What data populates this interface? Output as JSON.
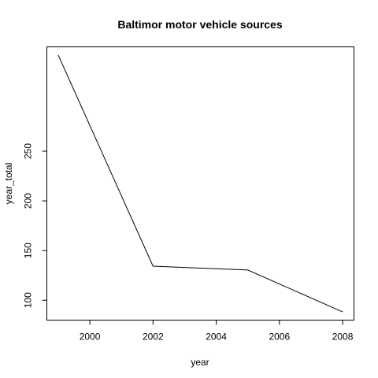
{
  "chart_data": {
    "type": "line",
    "title": "Baltimor motor vehicle sources",
    "xlabel": "year",
    "ylabel": "year_total",
    "x": [
      1999,
      2002,
      2005,
      2008
    ],
    "series": [
      {
        "values": [
          346.82,
          134.31,
          130.43,
          88.28
        ]
      }
    ],
    "xlim": [
      1998.64,
      2008.36
    ],
    "ylim": [
      80.0,
      355.0
    ],
    "xticks": [
      2000,
      2002,
      2004,
      2006,
      2008
    ],
    "yticks": [
      100,
      150,
      200,
      250
    ],
    "grid": false,
    "legend": "none",
    "line_color": "#000000"
  }
}
